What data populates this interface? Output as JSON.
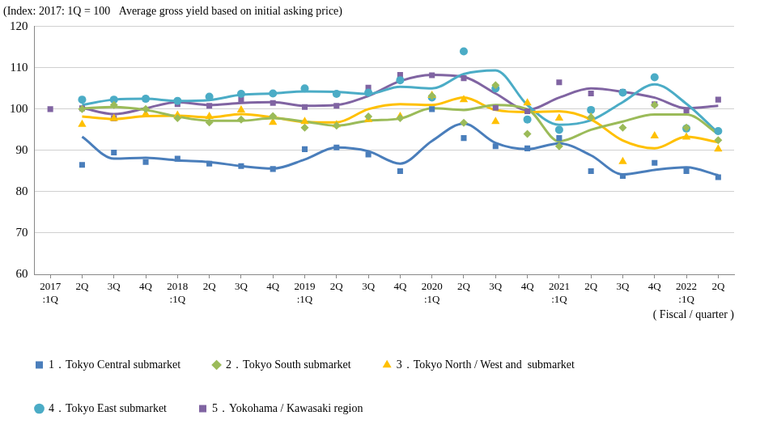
{
  "chart_data": {
    "type": "line",
    "title": "(Index: 2017: 1Q = 100   Average gross yield based on initial asking price)",
    "x_label": "( Fiscal / quarter )",
    "categories": [
      "2017:1Q",
      "2Q",
      "3Q",
      "4Q",
      "2018:1Q",
      "2Q",
      "3Q",
      "4Q",
      "2019:1Q",
      "2Q",
      "3Q",
      "4Q",
      "2020:1Q",
      "2Q",
      "3Q",
      "4Q",
      "2021:1Q",
      "2Q",
      "3Q",
      "4Q",
      "2022:1Q",
      "2Q"
    ],
    "ylim": [
      60,
      120
    ],
    "yticks": [
      60,
      70,
      80,
      90,
      100,
      110,
      120
    ],
    "grid": true,
    "legend": "bottom",
    "series": [
      {
        "name": "1．Tokyo Central submarket",
        "color": "#4a7ebb",
        "marker": "square",
        "values": [
          null,
          86.5,
          89.5,
          87.2,
          88.0,
          86.8,
          86.2,
          85.5,
          90.3,
          90.7,
          89.0,
          85.0,
          100.0,
          93.0,
          91.0,
          90.5,
          93.0,
          85.0,
          83.8,
          87.0,
          85.0,
          83.5
        ],
        "trend": [
          null,
          93.3,
          88.0,
          88.2,
          87.6,
          87.2,
          86.2,
          85.6,
          87.8,
          90.7,
          89.8,
          86.8,
          92.3,
          96.5,
          91.8,
          90.3,
          91.7,
          88.8,
          84.2,
          85.3,
          85.9,
          84.0
        ]
      },
      {
        "name": "2．Tokyo South submarket",
        "color": "#9bbb59",
        "marker": "diamond",
        "values": [
          null,
          100.0,
          101.0,
          100.0,
          97.8,
          96.8,
          97.5,
          98.3,
          95.5,
          96.0,
          98.2,
          97.8,
          103.2,
          96.7,
          105.8,
          94.0,
          91.0,
          98.0,
          95.5,
          101.0,
          95.5,
          92.5
        ],
        "trend": [
          null,
          100.2,
          100.5,
          99.8,
          98.2,
          97.2,
          97.2,
          97.8,
          97.0,
          96.0,
          97.2,
          97.7,
          100.2,
          99.8,
          101.0,
          100.0,
          92.2,
          95.0,
          97.0,
          98.7,
          98.7,
          94.0
        ]
      },
      {
        "name": "3．Tokyo North / West and  submarket",
        "color": "#ffc000",
        "marker": "triangle",
        "values": [
          null,
          96.3,
          97.7,
          98.8,
          98.5,
          98.2,
          99.8,
          96.8,
          97.0,
          96.2,
          97.5,
          98.2,
          103.3,
          102.3,
          97.0,
          101.5,
          97.8,
          98.0,
          87.3,
          93.5,
          93.2,
          90.3
        ],
        "trend": [
          null,
          98.2,
          97.6,
          98.3,
          98.4,
          98.0,
          98.8,
          98.0,
          96.9,
          96.8,
          100.0,
          101.2,
          101.0,
          102.8,
          99.8,
          99.3,
          99.5,
          97.5,
          92.4,
          90.5,
          93.3,
          92.0
        ]
      },
      {
        "name": "4．Tokyo East submarket",
        "color": "#4bacc6",
        "marker": "circle",
        "values": [
          null,
          102.3,
          102.3,
          102.5,
          102.0,
          103.0,
          103.7,
          103.8,
          105.0,
          103.7,
          104.0,
          107.0,
          102.8,
          114.0,
          105.0,
          97.5,
          95.0,
          99.8,
          104.0,
          107.7,
          95.3,
          94.7
        ],
        "trend": [
          null,
          101.0,
          102.3,
          102.5,
          102.0,
          102.2,
          103.5,
          103.8,
          104.3,
          104.2,
          103.7,
          105.4,
          105.0,
          108.5,
          109.4,
          101.0,
          96.2,
          97.3,
          101.7,
          106.0,
          101.3,
          94.2
        ]
      },
      {
        "name": "5．Yokohama / Kawasaki region",
        "color": "#8064a2",
        "marker": "square",
        "values": [
          100.0,
          100.2,
          97.8,
          102.5,
          101.2,
          100.8,
          102.3,
          101.5,
          100.5,
          100.8,
          105.2,
          108.3,
          108.2,
          107.5,
          100.3,
          99.5,
          106.5,
          103.8,
          104.2,
          101.2,
          99.7,
          102.3
        ],
        "trend": [
          null,
          100.3,
          98.8,
          100.2,
          101.7,
          101.0,
          101.5,
          101.7,
          100.8,
          101.0,
          103.2,
          106.8,
          108.3,
          107.8,
          103.8,
          99.8,
          102.8,
          105.0,
          104.2,
          102.8,
          100.2,
          100.8
        ]
      }
    ]
  }
}
